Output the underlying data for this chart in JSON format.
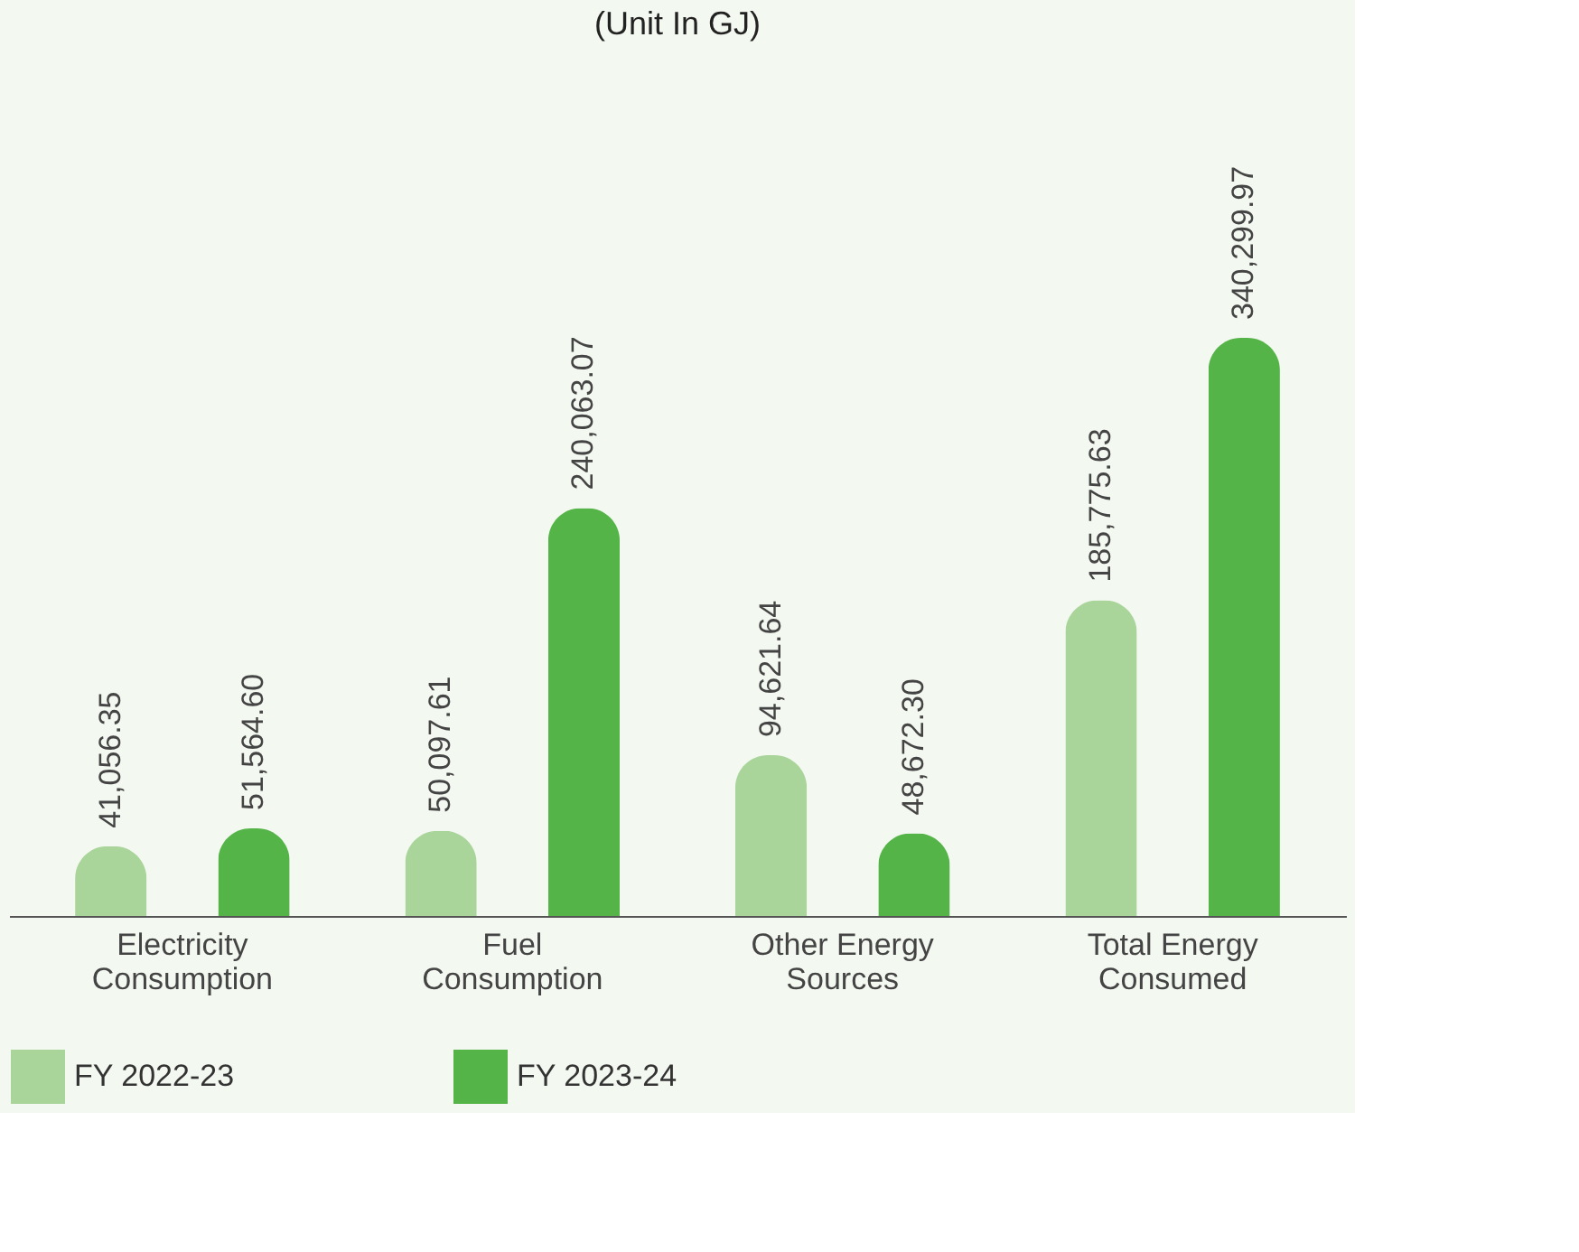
{
  "chart_data": {
    "type": "bar",
    "title": "(Unit In GJ)",
    "categories": [
      "Electricity Consumption",
      "Fuel Consumption",
      "Other Energy Sources",
      "Total Energy Consumed"
    ],
    "series": [
      {
        "name": "FY 2022-23",
        "color": "#a9d49a",
        "values": [
          41056.35,
          50097.61,
          94621.64,
          185775.63
        ],
        "value_labels": [
          "41,056.35",
          "50,097.61",
          "94,621.64",
          "185,775.63"
        ]
      },
      {
        "name": "FY 2023-24",
        "color": "#55b447",
        "values": [
          51564.6,
          240063.07,
          48672.3,
          340299.97
        ],
        "value_labels": [
          "51,564.60",
          "240,063.07",
          "48,672.30",
          "340,299.97"
        ]
      }
    ],
    "grid": false,
    "legend": "bottom"
  }
}
